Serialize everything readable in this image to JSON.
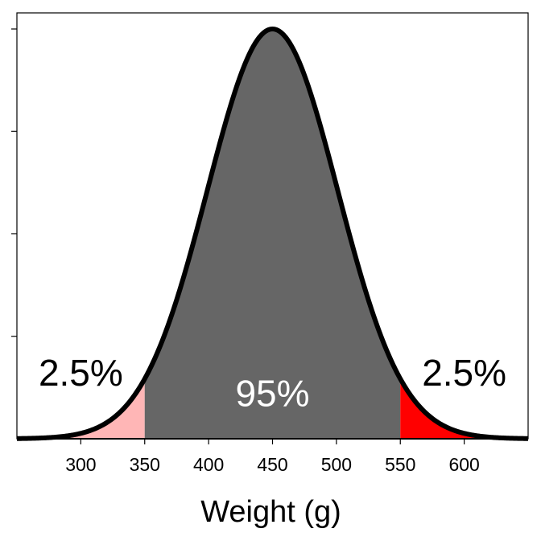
{
  "chart_data": {
    "type": "area",
    "title": "",
    "xlabel": "Weight (g)",
    "ylabel": "",
    "distribution": "normal",
    "mean": 450,
    "sd": 51,
    "xlim": [
      250,
      650
    ],
    "x_ticks": [
      300,
      350,
      400,
      450,
      500,
      550,
      600
    ],
    "x_tick_labels": [
      "300",
      "350",
      "400",
      "450",
      "500",
      "550",
      "600"
    ],
    "y_tick_count": 4,
    "y_tick_labels_shown": false,
    "grid": false,
    "legend": "none",
    "regions": [
      {
        "from": 250,
        "to": 350,
        "color": "#FFB6B6"
      },
      {
        "from": 350,
        "to": 550,
        "color": "#666666"
      },
      {
        "from": 550,
        "to": 650,
        "color": "#FF0000"
      }
    ],
    "annotations": [
      {
        "text": "2.5%",
        "x": 300,
        "y_frac": 0.13,
        "color": "#000000"
      },
      {
        "text": "95%",
        "x": 450,
        "y_frac": 0.08,
        "color": "#FFFFFF"
      },
      {
        "text": "2.5%",
        "x": 600,
        "y_frac": 0.13,
        "color": "#000000"
      }
    ],
    "curve_color": "#000000"
  }
}
